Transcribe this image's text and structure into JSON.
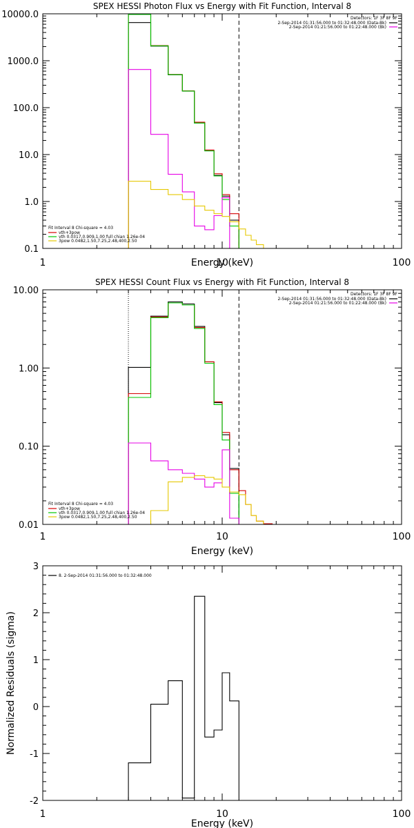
{
  "chart_data": [
    {
      "type": "line",
      "title": "SPEX HESSI Photon Flux vs Energy with Fit Function, Interval 8",
      "xlabel": "Energy (keV)",
      "ylabel": "",
      "xscale": "log",
      "yscale": "log",
      "xlim": [
        1,
        100
      ],
      "ylim": [
        0.1,
        10000
      ],
      "xticks": [
        "1",
        "10",
        "100"
      ],
      "yticks": [
        "0.1",
        "1.0",
        "10.0",
        "100.0",
        "1000.0",
        "10000.0"
      ],
      "grid": false,
      "legend_top": {
        "header": "Detectors: 1F 3F 8F 9F",
        "entries": [
          {
            "text": "2-Sep-2014 01:31:56.000 to 01:32:48.000 (Data-Bk)",
            "color": "#000000"
          },
          {
            "text": "2-Sep-2014 01:21:56.000 to 01:22:48.000 (Bk)",
            "color": "#e600e6"
          }
        ]
      },
      "legend_bottom": {
        "header": "Fit Interval 8   Chi-square = 4.03",
        "entries": [
          {
            "text": "vth+3pow",
            "color": "#d40000"
          },
          {
            "text": "vth 0.0317,0.909,1.00  full chian 1.26e-04",
            "color": "#00c800"
          },
          {
            "text": "3pow 0.0482,1.50,7.25,2.48,400,2.50",
            "color": "#e6c800"
          }
        ]
      },
      "fit_range_keV": [
        3.0,
        12.4
      ],
      "series": [
        {
          "color": "#000000",
          "edges": [
            3.0,
            4.0,
            5.0,
            6.0,
            7.0,
            8.0,
            9.0,
            10.0,
            11.0,
            12.4
          ],
          "values": [
            6500,
            2050,
            500,
            225,
            47,
            12,
            3.6,
            1.3,
            0.4
          ]
        },
        {
          "color": "#d40000",
          "edges": [
            3.0,
            4.0,
            5.0,
            6.0,
            7.0,
            8.0,
            9.0,
            10.0,
            11.0,
            12.4
          ],
          "values": [
            9800,
            2100,
            510,
            228,
            49,
            12.5,
            3.9,
            1.4,
            0.55
          ]
        },
        {
          "color": "#00c800",
          "edges": [
            3.0,
            4.0,
            5.0,
            6.0,
            7.0,
            8.0,
            9.0,
            10.0,
            11.0,
            12.4
          ],
          "values": [
            9700,
            2080,
            505,
            226,
            47,
            12,
            3.5,
            1.1,
            0.3
          ]
        },
        {
          "color": "#e600e6",
          "edges": [
            3.0,
            4.0,
            5.0,
            6.0,
            7.0,
            8.0,
            9.0,
            10.0,
            11.0,
            12.4
          ],
          "values": [
            650,
            27,
            3.8,
            1.6,
            0.3,
            0.25,
            0.5,
            1.2,
            0.1
          ]
        },
        {
          "color": "#e6c800",
          "edges": [
            3.0,
            4.0,
            5.0,
            6.0,
            7.0,
            8.0,
            9.0,
            10.0,
            11.0,
            12.4,
            13.5,
            14.5,
            15.5,
            17.0,
            19.0
          ],
          "values": [
            2.7,
            1.8,
            1.4,
            1.1,
            0.8,
            0.65,
            0.55,
            0.48,
            0.37,
            0.26,
            0.19,
            0.15,
            0.12,
            0.1
          ]
        }
      ]
    },
    {
      "type": "line",
      "title": "SPEX HESSI Count Flux vs Energy with Fit Function, Interval 8",
      "xlabel": "Energy (keV)",
      "ylabel": "",
      "xscale": "log",
      "yscale": "log",
      "xlim": [
        1,
        100
      ],
      "ylim": [
        0.01,
        10
      ],
      "xticks": [
        "1",
        "10",
        "100"
      ],
      "yticks": [
        "0.01",
        "0.10",
        "1.00",
        "10.00"
      ],
      "grid": false,
      "legend_top": {
        "header": "Detectors: 1F 3F 8F 9F",
        "entries": [
          {
            "text": "2-Sep-2014 01:31:56.000 to 01:32:48.000 (Data-Bk)",
            "color": "#000000"
          },
          {
            "text": "2-Sep-2014 01:21:56.000 to 01:22:48.000 (Bk)",
            "color": "#e600e6"
          }
        ]
      },
      "legend_bottom": {
        "header": "Fit Interval 8   Chi-square = 4.03",
        "entries": [
          {
            "text": "vth+3pow",
            "color": "#d40000"
          },
          {
            "text": "vth 0.0317,0.909,1.00  full chian 1.26e-04",
            "color": "#00c800"
          },
          {
            "text": "3pow 0.0482,1.50,7.25,2.48,400,2.50",
            "color": "#e6c800"
          }
        ]
      },
      "fit_range_keV": [
        3.0,
        12.4
      ],
      "series": [
        {
          "color": "#000000",
          "edges": [
            3.0,
            4.0,
            5.0,
            6.0,
            7.0,
            8.0,
            9.0,
            10.0,
            11.0,
            12.4
          ],
          "values": [
            1.02,
            4.6,
            7.0,
            6.6,
            3.4,
            1.2,
            0.36,
            0.14,
            0.052
          ]
        },
        {
          "color": "#d40000",
          "edges": [
            3.0,
            4.0,
            5.0,
            6.0,
            7.0,
            8.0,
            9.0,
            10.0,
            11.0,
            12.4,
            13.5,
            14.5,
            15.5,
            17.0,
            19.0
          ],
          "values": [
            0.47,
            4.5,
            6.8,
            6.4,
            3.3,
            1.2,
            0.37,
            0.15,
            0.05,
            0.027,
            0.018,
            0.013,
            0.011,
            0.0102
          ]
        },
        {
          "color": "#00c800",
          "edges": [
            3.0,
            4.0,
            5.0,
            6.0,
            7.0,
            8.0,
            9.0,
            10.0,
            11.0,
            12.4
          ],
          "values": [
            0.42,
            4.4,
            6.8,
            6.4,
            3.2,
            1.15,
            0.34,
            0.12,
            0.025
          ]
        },
        {
          "color": "#e600e6",
          "edges": [
            3.0,
            4.0,
            5.0,
            6.0,
            7.0,
            8.0,
            9.0,
            10.0,
            11.0,
            12.4
          ],
          "values": [
            0.11,
            0.065,
            0.05,
            0.045,
            0.038,
            0.03,
            0.034,
            0.09,
            0.012
          ]
        },
        {
          "color": "#e6c800",
          "edges": [
            4.0,
            5.0,
            6.0,
            7.0,
            8.0,
            9.0,
            10.0,
            11.0,
            12.4,
            13.5,
            14.5,
            15.5,
            17.0,
            19.0
          ],
          "values": [
            0.015,
            0.035,
            0.04,
            0.042,
            0.04,
            0.038,
            0.03,
            0.026,
            0.024,
            0.018,
            0.013,
            0.011,
            0.01
          ]
        }
      ]
    },
    {
      "type": "line",
      "title": "",
      "xlabel": "Energy (keV)",
      "ylabel": "Normalized Residuals (sigma)",
      "xscale": "log",
      "yscale": "linear",
      "xlim": [
        1,
        100
      ],
      "ylim": [
        -2,
        3
      ],
      "xticks": [
        "1",
        "10",
        "100"
      ],
      "yticks": [
        "-2",
        "-1",
        "0",
        "1",
        "2",
        "3"
      ],
      "grid": false,
      "legend_top": {
        "header": "",
        "entries": [
          {
            "text": "8.  2-Sep-2014 01:31:56.000 to 01:32:48.000",
            "color": "#000000"
          }
        ]
      },
      "series": [
        {
          "color": "#000000",
          "edges": [
            3.0,
            4.0,
            5.0,
            6.0,
            7.0,
            8.0,
            9.0,
            10.0,
            11.0,
            12.4
          ],
          "values": [
            -1.2,
            0.05,
            0.55,
            -1.95,
            2.35,
            -0.65,
            -0.5,
            0.72,
            0.12
          ]
        }
      ]
    }
  ]
}
